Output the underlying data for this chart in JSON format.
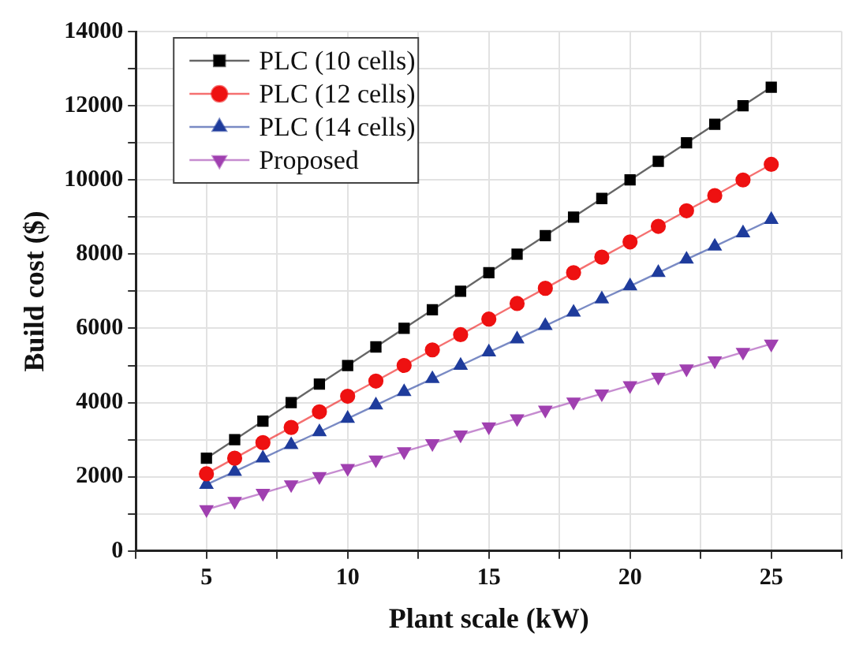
{
  "chart_data": {
    "type": "line",
    "xlabel": "Plant scale (kW)",
    "ylabel": "Build cost ($)",
    "x": [
      5,
      6,
      7,
      8,
      9,
      10,
      11,
      12,
      13,
      14,
      15,
      16,
      17,
      18,
      19,
      20,
      21,
      22,
      23,
      24,
      25
    ],
    "series": [
      {
        "name": "PLC (10 cells)",
        "color": "#000000",
        "marker": "square",
        "values": [
          2500,
          3000,
          3500,
          4000,
          4500,
          5000,
          5500,
          6000,
          6500,
          7000,
          7500,
          8000,
          8500,
          9000,
          9500,
          10000,
          10500,
          11000,
          11500,
          12000,
          12500
        ]
      },
      {
        "name": "PLC (12 cells)",
        "color": "#ee1111",
        "marker": "circle",
        "values": [
          2080,
          2500,
          2920,
          3330,
          3750,
          4170,
          4580,
          5000,
          5420,
          5830,
          6250,
          6670,
          7080,
          7500,
          7920,
          8330,
          8750,
          9170,
          9580,
          10000,
          10420
        ]
      },
      {
        "name": "PLC (14 cells)",
        "color": "#1f3c9c",
        "marker": "triangle",
        "values": [
          1790,
          2140,
          2500,
          2860,
          3210,
          3570,
          3930,
          4290,
          4640,
          5000,
          5360,
          5710,
          6070,
          6430,
          6790,
          7140,
          7500,
          7860,
          8210,
          8570,
          8930
        ]
      },
      {
        "name": "Proposed",
        "color": "#a040b0",
        "marker": "triangle-down",
        "values": [
          1120,
          1340,
          1560,
          1790,
          2010,
          2230,
          2460,
          2680,
          2900,
          3130,
          3350,
          3570,
          3800,
          4020,
          4240,
          4460,
          4690,
          4910,
          5130,
          5360,
          5580
        ]
      }
    ],
    "xlim": [
      2.5,
      27.5
    ],
    "xticks": [
      {
        "value": 2.5,
        "label": null
      },
      5,
      {
        "value": 7.5,
        "label": null
      },
      10,
      {
        "value": 12.5,
        "label": null
      },
      15,
      {
        "value": 17.5,
        "label": null
      },
      20,
      {
        "value": 22.5,
        "label": null
      },
      25,
      {
        "value": 27.5,
        "label": null
      }
    ],
    "ylim": [
      0,
      14000
    ],
    "yticks": [
      0,
      {
        "value": 1000,
        "label": null
      },
      2000,
      {
        "value": 3000,
        "label": null
      },
      4000,
      {
        "value": 5000,
        "label": null
      },
      6000,
      {
        "value": 7000,
        "label": null
      },
      8000,
      {
        "value": 9000,
        "label": null
      },
      10000,
      {
        "value": 11000,
        "label": null
      },
      12000,
      {
        "value": 13000,
        "label": null
      },
      14000
    ],
    "grid": true,
    "legend": "top left",
    "line_style": "solid"
  }
}
